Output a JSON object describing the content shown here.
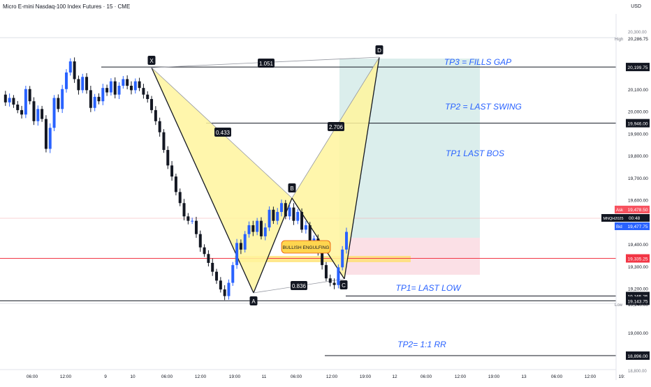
{
  "header": {
    "title": "Micro E-mini Nasdaq-100 Index Futures · 15 · CME",
    "currency": "USD"
  },
  "price_axis": {
    "ticks": [
      "20,100.00",
      "20,000.00",
      "19,900.00",
      "19,800.00",
      "19,700.00",
      "19,600.00",
      "19,400.00",
      "19,300.00",
      "19,200.00",
      "19,000.00"
    ],
    "tick_values": [
      20100,
      20000,
      19900,
      19800,
      19700,
      19600,
      19400,
      19300,
      19200,
      19000
    ],
    "high_label": "High",
    "high_value": "20,286.75",
    "low_label": "Low",
    "low_value": "19,140.00",
    "ask_label": "Ask",
    "ask_value": "19,478.50",
    "symbol_label": "MNQH2025",
    "countdown": "00:48",
    "bid_label": "Bid",
    "bid_value": "19,477.75",
    "level_labels": [
      "20,199.75",
      "19,946.00",
      "19,335.25",
      "19,165.25",
      "19,143.75",
      "18,896.00"
    ],
    "partial_top": "20,300.00",
    "partial_bottom": "18,800.00"
  },
  "time_axis": {
    "labels": [
      "06:00",
      "12:00",
      "9",
      "10",
      "06:00",
      "12:00",
      "19:00",
      "11",
      "06:00",
      "12:00",
      "19:00",
      "12",
      "06:00",
      "12:00",
      "19:00",
      "13",
      "06:00",
      "12:00",
      "19:"
    ]
  },
  "pattern": {
    "points": [
      "X",
      "A",
      "B",
      "C",
      "D"
    ],
    "ratios": [
      "1.051",
      "0.433",
      "2.706",
      "0.836"
    ],
    "candle_note": "BULLISH ENGULFING"
  },
  "annotations": {
    "tp3": "TP3 = FILLS GAP",
    "tp2_swing": "TP2 = LAST SWING",
    "tp1_bos": "TP1 LAST BOS",
    "tp1_low": "TP1= LAST LOW",
    "tp2_rr": "TP2= 1:1 RR"
  },
  "colors": {
    "up": "#2962ff",
    "down": "#131722",
    "pattern_fill": "#fff59d",
    "profit_zone": "#d7ecea",
    "loss_zone": "#fbdde3",
    "annotation_text": "#2962ff",
    "level_line": "#131722",
    "red_line": "#f23645"
  },
  "chart_data": {
    "type": "candlestick",
    "symbol": "MNQH2025",
    "interval": "15",
    "y_unit": "price",
    "ylim": [
      18800,
      20300
    ],
    "high": 20286.75,
    "low": 19140.0,
    "ask": 19478.5,
    "bid": 19477.75,
    "horizontal_levels": [
      20199.75,
      19946.0,
      19335.25,
      19165.25,
      19143.75,
      18896.0
    ],
    "harmonic_points": [
      {
        "label": "X",
        "price": 20150
      },
      {
        "label": "A",
        "price": 19150
      },
      {
        "label": "B",
        "price": 19585
      },
      {
        "label": "C",
        "price": 19215
      },
      {
        "label": "D",
        "price": 20199.75
      }
    ],
    "ratios": [
      1.051,
      0.433,
      2.706,
      0.836
    ],
    "price_path": [
      20075,
      20040,
      20060,
      20030,
      20005,
      19985,
      20100,
      20045,
      19955,
      20010,
      19965,
      19830,
      19925,
      20060,
      20010,
      20100,
      20175,
      20225,
      20145,
      20095,
      20155,
      20095,
      20015,
      20065,
      20045,
      20105,
      20085,
      20135,
      20075,
      20115,
      20145,
      20115,
      20095,
      20135,
      20105,
      20075,
      20055,
      20005,
      19955,
      19905,
      19825,
      19755,
      19705,
      19635,
      19585,
      19525,
      19505,
      19505,
      19445,
      19385,
      19355,
      19315,
      19275,
      19235,
      19195,
      19165,
      19225,
      19305,
      19405,
      19375,
      19445,
      19485,
      19455,
      19505,
      19435,
      19475,
      19555,
      19505,
      19545,
      19585,
      19525,
      19565,
      19505,
      19545,
      19465,
      19485,
      19405,
      19425,
      19365,
      19305,
      19245,
      19225,
      19215,
      19295,
      19375,
      19455
    ]
  }
}
